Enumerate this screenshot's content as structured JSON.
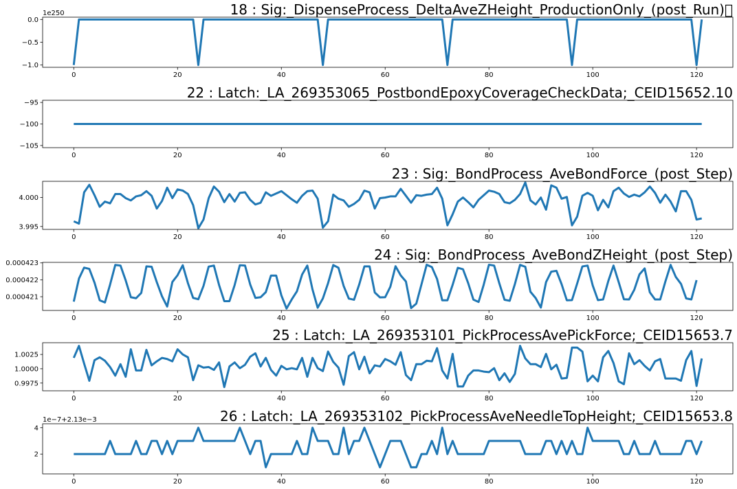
{
  "chart_data": [
    {
      "type": "line",
      "title": "18 : Sig:_DispenseProcess_DeltaAveZHeight_ProductionOnly_(post_Run)\u0000",
      "offset_text": "1e250",
      "ylim": [
        -1.05,
        0.05
      ],
      "xlim": [
        -6,
        127
      ],
      "xticks": [
        0,
        20,
        40,
        60,
        80,
        100,
        120
      ],
      "xtick_labels": [
        "0",
        "20",
        "40",
        "60",
        "80",
        "100",
        "120"
      ],
      "yticks": [
        -1.0,
        -0.5,
        0.0
      ],
      "ytick_labels": [
        "−1.0",
        "−0.5",
        "0.0"
      ],
      "color": "#1f77b4",
      "series": [
        {
          "x": [
            0,
            1,
            23,
            24,
            25,
            47,
            48,
            49,
            71,
            72,
            73,
            95,
            96,
            97,
            119,
            120,
            121
          ],
          "y": [
            -1,
            0,
            0,
            -1,
            0,
            0,
            -1,
            0,
            0,
            -1,
            0,
            0,
            -1,
            0,
            0,
            -1,
            0
          ]
        }
      ]
    },
    {
      "type": "line",
      "title": "22 : Latch:_LA_269353065_PostbondEpoxyCoverageCheckData;_CEID15652.10",
      "ylim": [
        -105.5,
        -94.5
      ],
      "xlim": [
        -6,
        127
      ],
      "xticks": [
        0,
        20,
        40,
        60,
        80,
        100,
        120
      ],
      "xtick_labels": [
        "0",
        "20",
        "40",
        "60",
        "80",
        "100",
        "120"
      ],
      "yticks": [
        -105,
        -100,
        -95
      ],
      "ytick_labels": [
        "−105",
        "−100",
        "−95"
      ],
      "color": "#1f77b4",
      "series": [
        {
          "x": [
            0,
            121
          ],
          "y": [
            -100,
            -100
          ]
        }
      ]
    },
    {
      "type": "line",
      "title": "23 : Sig:_BondProcess_AveBondForce_(post_Step)",
      "ylim": [
        3.9945,
        4.0028
      ],
      "xlim": [
        -6,
        127
      ],
      "xticks": [
        0,
        20,
        40,
        60,
        80,
        100,
        120
      ],
      "xtick_labels": [
        "0",
        "20",
        "40",
        "60",
        "80",
        "100",
        "120"
      ],
      "yticks": [
        3.995,
        4.0
      ],
      "ytick_labels": [
        "3.995",
        "4.000"
      ],
      "color": "#1f77b4",
      "series": [
        {
          "x_start": 0,
          "y": [
            3.9959,
            3.9955,
            4.0009,
            4.0022,
            4.0004,
            3.9984,
            3.9993,
            3.999,
            4.0006,
            4.0006,
            3.9999,
            3.9995,
            4.0002,
            4.0004,
            4.0011,
            4.0003,
            3.9981,
            3.9994,
            4.0017,
            3.9999,
            4.0014,
            4.0012,
            4.0006,
            3.9987,
            3.9947,
            3.9962,
            3.9999,
            4.0019,
            4.001,
            3.9992,
            4.0006,
            3.9993,
            4.0008,
            4.0009,
            3.9996,
            3.9988,
            3.9991,
            4.0009,
            4.0003,
            4.0007,
            4.0011,
            4.0004,
            3.9997,
            3.9991,
            4.0003,
            4.0011,
            4.0012,
            3.9998,
            3.9948,
            3.9959,
            4.0005,
            3.9998,
            3.9995,
            3.9984,
            3.9989,
            3.9996,
            4.0012,
            4.0009,
            3.9981,
            3.9999,
            4.0,
            4.0002,
            4.0002,
            4.0015,
            4.0003,
            3.9991,
            4.0004,
            4.0003,
            4.0005,
            4.0006,
            4.0017,
            3.9998,
            3.9952,
            3.9971,
            3.9993,
            4.0,
            3.9992,
            3.9983,
            3.9996,
            4.0004,
            4.0012,
            4.001,
            4.0006,
            3.9992,
            3.999,
            3.9996,
            4.0006,
            4.0026,
            3.9995,
            3.9988,
            4.0,
            3.9979,
            4.0021,
            4.0017,
            3.9998,
            4.0001,
            3.9952,
            3.9967,
            4.0003,
            4.0008,
            4.0003,
            3.9978,
            3.9996,
            3.9983,
            4.0011,
            4.0017,
            4.0007,
            4.0001,
            4.0005,
            4.0002,
            4.0009,
            4.0019,
            4.0008,
            3.9991,
            4.0005,
            3.9993,
            3.9976,
            4.0011,
            4.0011,
            3.9996,
            3.9962,
            3.9964
          ]
        }
      ]
    },
    {
      "type": "line",
      "title": "24 : Sig:_BondProcess_AveBondZHeight_(post_Step)",
      "ylim": [
        0.00042019,
        0.00042303
      ],
      "xlim": [
        -6,
        127
      ],
      "xticks": [
        0,
        20,
        40,
        60,
        80,
        100,
        120
      ],
      "xtick_labels": [
        "0",
        "20",
        "40",
        "60",
        "80",
        "100",
        "120"
      ],
      "yticks": [
        0.000421,
        0.000422,
        0.000423
      ],
      "ytick_labels": [
        "0.000421",
        "0.000422",
        "0.000423"
      ],
      "color": "#1f77b4",
      "series": [
        {
          "x_start": 0,
          "y": [
            0.00042071,
            0.00042207,
            0.00042272,
            0.00042264,
            0.00042183,
            0.00042079,
            0.00042066,
            0.00042172,
            0.00042288,
            0.00042284,
            0.00042197,
            0.00042097,
            0.00042091,
            0.00042122,
            0.00042279,
            0.00042277,
            0.00042186,
            0.00042103,
            0.00042042,
            0.00042187,
            0.00042227,
            0.00042286,
            0.0004218,
            0.00042093,
            0.00042085,
            0.00042164,
            0.00042278,
            0.00042284,
            0.00042169,
            0.00042074,
            0.00042074,
            0.00042169,
            0.00042286,
            0.00042284,
            0.00042172,
            0.00042093,
            0.00042097,
            0.00042127,
            0.00042225,
            0.00042225,
            0.00042108,
            0.0004203,
            0.00042084,
            0.00042132,
            0.00042231,
            0.00042284,
            0.00042143,
            0.00042035,
            0.0004209,
            0.0004218,
            0.00042287,
            0.00042271,
            0.00042164,
            0.00042089,
            0.00042082,
            0.00042172,
            0.00042279,
            0.00042279,
            0.00042125,
            0.00042096,
            0.00042097,
            0.00042159,
            0.0004228,
            0.00042226,
            0.0004219,
            0.00042033,
            0.00042059,
            0.00042173,
            0.00042289,
            0.00042275,
            0.00042205,
            0.00042079,
            0.00042079,
            0.0004217,
            0.00042271,
            0.00042262,
            0.0004218,
            0.00042083,
            0.00042069,
            0.00042172,
            0.00042289,
            0.00042284,
            0.00042179,
            0.00042082,
            0.00042076,
            0.00042175,
            0.00042288,
            0.00042277,
            0.00042129,
            0.00042092,
            0.00042036,
            0.00042186,
            0.00042248,
            0.00042253,
            0.00042174,
            0.00042079,
            0.0004208,
            0.00042178,
            0.00042279,
            0.00042284,
            0.00042166,
            0.0004208,
            0.00042084,
            0.00042193,
            0.00042284,
            0.00042186,
            0.00042085,
            0.00042084,
            0.00042141,
            0.00042232,
            0.00042267,
            0.00042126,
            0.00042084,
            0.00042084,
            0.0004219,
            0.00042288,
            0.00042217,
            0.00042176,
            0.0004209,
            0.00042084,
            0.00042198
          ]
        }
      ]
    },
    {
      "type": "line",
      "title": "25 : Latch:_LA_269353101_PickProcessAvePickForce;_CEID15653.7",
      "ylim": [
        0.99615,
        1.00455
      ],
      "xlim": [
        -6,
        127
      ],
      "xticks": [
        0,
        20,
        40,
        60,
        80,
        100,
        120
      ],
      "xtick_labels": [
        "0",
        "20",
        "40",
        "60",
        "80",
        "100",
        "120"
      ],
      "yticks": [
        0.9975,
        1.0,
        1.0025
      ],
      "ytick_labels": [
        "0.9975",
        "1.0000",
        "1.0025"
      ],
      "color": "#1f77b4",
      "series": [
        {
          "x_start": 0,
          "y": [
            1.0019,
            1.004,
            1.0009,
            0.9979,
            1.0015,
            1.002,
            1.0014,
            1.0003,
            0.9988,
            1.0008,
            0.9986,
            1.0034,
            0.9997,
            0.9997,
            1.0033,
            1.0006,
            1.0013,
            1.0019,
            1.0017,
            1.0013,
            1.0034,
            1.0025,
            1.002,
            0.998,
            1.0006,
            1.0002,
            1.0003,
            0.9998,
            1.0011,
            0.9968,
            1.0004,
            1.0011,
            1.0001,
            1.0007,
            1.0021,
            1.0027,
            1.0004,
            1.0019,
            0.9998,
            0.9988,
            1.0005,
            0.9999,
            1.0001,
            0.9999,
            1.0019,
            0.9986,
            1.0019,
            1.0001,
            0.9996,
            1.003,
            1.0012,
            1.0002,
            0.9972,
            1.0022,
            1.0029,
            0.9999,
            1.0021,
            0.9992,
            1.0006,
            1.0004,
            1.0017,
            1.0013,
            1.0007,
            1.0029,
            0.9989,
            0.998,
            1.0008,
            1.0008,
            1.0014,
            1.0013,
            1.0036,
            0.9997,
            0.9983,
            1.0026,
            0.9969,
            0.9969,
            0.9988,
            0.9997,
            0.9997,
            0.9995,
            0.9994,
            1.0001,
            0.998,
            0.9992,
            0.9977,
            0.9991,
            1.004,
            1.0018,
            1.0008,
            1.0008,
            1.0003,
            1.0026,
            0.9999,
            1.0007,
            0.9983,
            0.9984,
            1.0037,
            1.0037,
            1.003,
            0.9978,
            0.9988,
            0.9978,
            1.002,
            1.0031,
            1.001,
            0.9978,
            0.9973,
            1.0027,
            1.0008,
            1.0015,
            1.0005,
            0.9997,
            1.0013,
            1.0017,
            0.9983,
            0.9983,
            0.9983,
            0.9979,
            1.0015,
            1.0031,
            0.997,
            1.0018
          ]
        }
      ]
    },
    {
      "type": "line",
      "title": "26 : Latch:_LA_269353102_PickProcessAveNeedleTopHeight;_CEID15653.8",
      "offset_text": "1e−7+2.13e−3",
      "ylim": [
        0.5,
        4.3
      ],
      "xlim": [
        -6,
        127
      ],
      "xticks": [
        0,
        20,
        40,
        60,
        80,
        100,
        120
      ],
      "xtick_labels": [
        "0",
        "20",
        "40",
        "60",
        "80",
        "100",
        "120"
      ],
      "yticks": [
        2,
        4
      ],
      "ytick_labels": [
        "2",
        "4"
      ],
      "color": "#1f77b4",
      "series": [
        {
          "x_start": 0,
          "y": [
            2,
            2,
            2,
            2,
            2,
            2,
            2,
            3,
            2,
            2,
            2,
            2,
            3,
            2,
            2,
            3,
            3,
            2,
            3,
            2,
            3,
            3,
            3,
            3,
            4,
            3,
            3,
            3,
            3,
            3,
            3,
            3,
            4,
            3,
            2,
            3,
            3,
            1,
            2,
            2,
            2,
            2,
            2,
            3,
            2,
            2,
            4,
            3,
            3,
            3,
            2,
            2,
            4,
            2,
            3,
            3,
            4,
            3,
            2,
            1,
            2,
            3,
            3,
            3,
            2,
            1,
            1,
            2,
            2,
            3,
            2,
            4,
            2,
            3,
            2,
            2,
            2,
            2,
            2,
            2,
            3,
            3,
            3,
            3,
            3,
            3,
            3,
            2,
            2,
            2,
            2,
            3,
            3,
            2,
            3,
            2,
            3,
            2,
            2,
            4,
            3,
            3,
            3,
            3,
            3,
            3,
            2,
            2,
            3,
            2,
            2,
            2,
            3,
            2,
            2,
            2,
            2,
            2,
            3,
            3,
            2,
            3
          ]
        }
      ]
    }
  ]
}
